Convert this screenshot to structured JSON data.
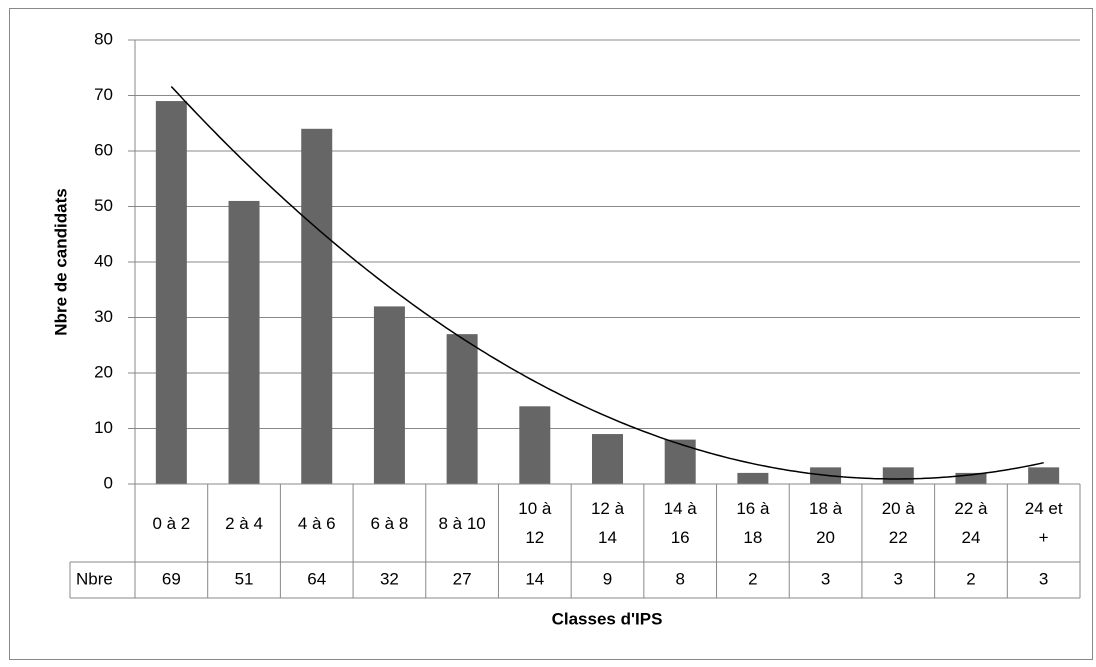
{
  "chart_data": {
    "type": "bar",
    "x_label": "Classes d'IPS",
    "y_label": "Nbre de candidats",
    "categories": [
      "0 à 2",
      "2 à 4",
      "4 à 6",
      "6 à 8",
      "8 à 10",
      "10 à 12",
      "12 à 14",
      "14 à 16",
      "16 à 18",
      "18 à 20",
      "20 à 22",
      "22 à 24",
      "24 et +"
    ],
    "series": [
      {
        "name": "Nbre",
        "color": "#666666",
        "values": [
          69,
          51,
          64,
          32,
          27,
          14,
          9,
          8,
          2,
          3,
          3,
          2,
          3
        ]
      }
    ],
    "ylim": [
      0,
      80
    ],
    "yticks": [
      0,
      10,
      20,
      30,
      40,
      50,
      60,
      70,
      80
    ],
    "grid": true,
    "data_table": true,
    "trendline": {
      "type": "polynomial",
      "order": 2
    }
  }
}
